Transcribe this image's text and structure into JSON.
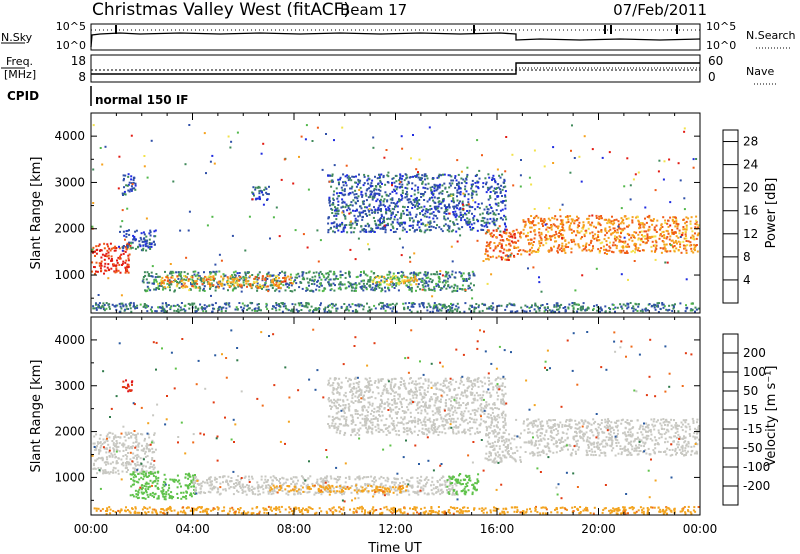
{
  "header": {
    "station": "Christmas Valley West (fitACF)",
    "beam": "Beam 17",
    "date": "07/Feb/2011"
  },
  "top_panels": {
    "nsky": {
      "label": "N.Sky",
      "ticks": [
        "10^5",
        "10^0"
      ]
    },
    "nsearch": {
      "label": "N.Search",
      "ticks": [
        "10^5",
        "10^0"
      ]
    },
    "freq": {
      "label_1": "Freq.",
      "label_2": "[MHz]",
      "ticks": [
        "18",
        "8"
      ]
    },
    "nave": {
      "label": "Nave",
      "ticks": [
        "60",
        "0"
      ]
    },
    "cpid": {
      "label": "CPID",
      "text": "normal 150 IF"
    }
  },
  "chart_data": [
    {
      "type": "heatmap",
      "title": "",
      "xlabel": "Time UT",
      "ylabel": "Slant Range [km]",
      "x_ticks": [
        "00:00",
        "04:00",
        "08:00",
        "12:00",
        "16:00",
        "20:00",
        "00:00"
      ],
      "xlim_hours": [
        0,
        24
      ],
      "y_ticks": [
        1000,
        2000,
        3000,
        4000
      ],
      "ylim": [
        180,
        4500
      ],
      "colorbar": {
        "label": "Power [dB]",
        "ticks": [
          "28",
          "24",
          "20",
          "16",
          "12",
          "8",
          "4"
        ],
        "range": [
          0,
          30
        ],
        "colors": [
          "#1f2be0",
          "#2f4fa8",
          "#3f8a5a",
          "#52b84a",
          "#f2e24a",
          "#f6a21d",
          "#ef5a16",
          "#e21a12"
        ]
      },
      "regions": [
        {
          "t0": 0.0,
          "t1": 1.6,
          "r0": 1000,
          "r1": 1700,
          "v": 27
        },
        {
          "t0": 1.2,
          "t1": 2.6,
          "r0": 1500,
          "r1": 2000,
          "v": 6
        },
        {
          "t0": 1.2,
          "t1": 1.8,
          "r0": 2700,
          "r1": 3200,
          "v": 5
        },
        {
          "t0": 2.0,
          "t1": 15.2,
          "r0": 620,
          "r1": 1100,
          "v": 9
        },
        {
          "t0": 2.6,
          "t1": 8.0,
          "r0": 700,
          "r1": 1000,
          "v": 21
        },
        {
          "t0": 11.0,
          "t1": 13.0,
          "r0": 760,
          "r1": 1000,
          "v": 18
        },
        {
          "t0": 6.3,
          "t1": 7.1,
          "r0": 2600,
          "r1": 2960,
          "v": 6
        },
        {
          "t0": 9.3,
          "t1": 16.4,
          "r0": 1900,
          "r1": 3200,
          "v": 6
        },
        {
          "t0": 15.5,
          "t1": 17.0,
          "r0": 1300,
          "r1": 2000,
          "v": 24
        },
        {
          "t0": 17.0,
          "t1": 24.0,
          "r0": 1450,
          "r1": 2300,
          "v": 22
        },
        {
          "t0": 0.0,
          "t1": 24.0,
          "r0": 180,
          "r1": 420,
          "v": 8
        }
      ]
    },
    {
      "type": "heatmap",
      "title": "",
      "xlabel": "Time UT",
      "ylabel": "Slant Range [km]",
      "x_ticks": [
        "00:00",
        "04:00",
        "08:00",
        "12:00",
        "16:00",
        "20:00",
        "00:00"
      ],
      "xlim_hours": [
        0,
        24
      ],
      "y_ticks": [
        1000,
        2000,
        3000,
        4000
      ],
      "ylim": [
        180,
        4500
      ],
      "colorbar": {
        "label": "Velocity [m s⁻¹]",
        "ticks": [
          "200",
          "100",
          "50",
          "15",
          "-15",
          "-50",
          "-100",
          "-200"
        ],
        "colors": [
          "#1f2fb0",
          "#2a5aa0",
          "#2f7a4a",
          "#5fc24a",
          "#c8c8c2",
          "#f3a41f",
          "#ef6a18",
          "#e23a12",
          "#e0111a"
        ]
      },
      "regions": [
        {
          "t0": 0.0,
          "t1": 2.6,
          "r0": 1050,
          "r1": 2000,
          "v": 0
        },
        {
          "t0": 1.2,
          "t1": 1.7,
          "r0": 2850,
          "r1": 3150,
          "v": -200
        },
        {
          "t0": 1.5,
          "t1": 4.2,
          "r0": 500,
          "r1": 1150,
          "v": 30
        },
        {
          "t0": 4.0,
          "t1": 14.5,
          "r0": 600,
          "r1": 1050,
          "v": 0
        },
        {
          "t0": 7.0,
          "t1": 12.5,
          "r0": 640,
          "r1": 850,
          "v": -40
        },
        {
          "t0": 14.0,
          "t1": 15.3,
          "r0": 600,
          "r1": 1100,
          "v": 30
        },
        {
          "t0": 9.3,
          "t1": 16.4,
          "r0": 1900,
          "r1": 3200,
          "v": 0
        },
        {
          "t0": 15.5,
          "t1": 17.0,
          "r0": 1300,
          "r1": 2000,
          "v": 0
        },
        {
          "t0": 17.0,
          "t1": 24.0,
          "r0": 1450,
          "r1": 2300,
          "v": 0
        },
        {
          "t0": 0.0,
          "t1": 24.0,
          "r0": 180,
          "r1": 380,
          "v": -40
        }
      ]
    }
  ]
}
